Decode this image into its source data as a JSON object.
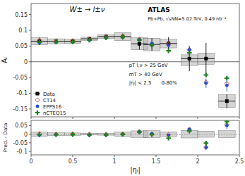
{
  "chart_data": [
    {
      "type": "scatter",
      "title": "W± → l±ν",
      "subtitle": "Pb+Pb, √sNN=5.02 TeV, 0.49 nb⁻¹",
      "annotations": [
        "ATLAS",
        "pT l,ν > 25 GeV",
        "mT > 40 GeV",
        "|ηₗ| < 2.5",
        "0-80%"
      ],
      "y_label": "Aₗ",
      "x": [
        0.1,
        0.3,
        0.5,
        0.7,
        0.9,
        1.1,
        1.3,
        1.45,
        1.65,
        1.9,
        2.1,
        2.35
      ],
      "xlim": [
        0.0,
        2.5
      ],
      "xticks": [
        0,
        0.5,
        1,
        1.5,
        2,
        2.5
      ],
      "ylim": [
        -0.175,
        0.185
      ],
      "yticks": [
        -0.15,
        -0.1,
        -0.05,
        0,
        0.05,
        0.1,
        0.15
      ],
      "tick_labels": "y",
      "grid": false,
      "legend": "lower left",
      "series": [
        {
          "name": "Data",
          "color": "black",
          "marker": "square",
          "values": [
            0.065,
            0.065,
            0.065,
            0.073,
            0.08,
            0.08,
            0.057,
            0.055,
            0.058,
            0.01,
            0.01,
            -0.125
          ],
          "yerr_lo": [
            0.012,
            0.009,
            0.007,
            0.007,
            0.008,
            0.01,
            0.018,
            0.02,
            0.02,
            0.04,
            0.05,
            0.022
          ],
          "yerr_hi": [
            0.012,
            0.009,
            0.007,
            0.007,
            0.008,
            0.01,
            0.018,
            0.02,
            0.02,
            0.04,
            0.05,
            0.022
          ],
          "xerr": [
            0.1,
            0.1,
            0.1,
            0.1,
            0.1,
            0.1,
            0.1,
            0.1,
            0.1,
            0.1,
            0.1,
            0.1
          ],
          "box_color": "#b0b0b0",
          "box_lo": [
            0.054,
            0.057,
            0.058,
            0.068,
            0.074,
            0.067,
            0.038,
            0.035,
            0.044,
            -0.012,
            -0.008,
            -0.145
          ],
          "box_hi": [
            0.076,
            0.073,
            0.072,
            0.078,
            0.086,
            0.093,
            0.076,
            0.075,
            0.072,
            0.022,
            0.028,
            -0.105
          ]
        },
        {
          "name": "CT14",
          "color": "#e05040",
          "marker": "diamond",
          "values": [
            0.068,
            0.065,
            0.067,
            0.072,
            0.079,
            0.081,
            0.072,
            0.056,
            0.055,
            0.038,
            -0.065,
            -0.07
          ]
        },
        {
          "name": "EPPS16",
          "color": "#2050d0",
          "marker": "circle",
          "values": [
            0.06,
            0.062,
            0.063,
            0.068,
            0.076,
            0.079,
            0.07,
            0.058,
            0.052,
            0.038,
            -0.068,
            -0.075
          ],
          "yerr": [
            0.005,
            0.004,
            0.004,
            0.004,
            0.004,
            0.004,
            0.005,
            0.005,
            0.006,
            0.008,
            0.015,
            0.02
          ]
        },
        {
          "name": "nCTEQ15",
          "color": "#208020",
          "marker": "plus",
          "values": [
            0.062,
            0.063,
            0.063,
            0.069,
            0.076,
            0.079,
            0.069,
            0.053,
            0.035,
            0.028,
            -0.042,
            -0.052
          ]
        }
      ]
    },
    {
      "type": "scatter",
      "x_label": "|ηₗ|",
      "y_label": "Pred. - Data",
      "x": [
        0.1,
        0.3,
        0.5,
        0.7,
        0.9,
        1.1,
        1.3,
        1.45,
        1.65,
        1.9,
        2.1,
        2.35
      ],
      "xlim": [
        0.0,
        2.5
      ],
      "xticks": [
        0,
        0.5,
        1,
        1.5,
        2,
        2.5
      ],
      "ylim": [
        -0.12,
        0.08
      ],
      "yticks": [
        -0.1,
        -0.05,
        0,
        0.05
      ],
      "grid": false,
      "series": [
        {
          "type": "box",
          "box_color": "#b0b0b0",
          "xerr": [
            0.1,
            0.1,
            0.1,
            0.1,
            0.1,
            0.1,
            0.1,
            0.1,
            0.1,
            0.1,
            0.1,
            0.1
          ],
          "box_lo": [
            -0.012,
            -0.008,
            -0.007,
            -0.005,
            -0.006,
            -0.013,
            -0.019,
            -0.02,
            -0.014,
            -0.022,
            -0.018,
            -0.02
          ],
          "box_hi": [
            0.012,
            0.008,
            0.007,
            0.005,
            0.006,
            0.013,
            0.019,
            0.02,
            0.014,
            0.022,
            0.018,
            0.02
          ]
        },
        {
          "color": "#e05040",
          "marker": "diamond",
          "values": [
            0.003,
            0.0,
            0.002,
            -0.001,
            -0.001,
            0.001,
            0.015,
            0.001,
            -0.003,
            0.028,
            -0.075,
            0.055
          ]
        },
        {
          "color": "#2050d0",
          "marker": "circle",
          "values": [
            -0.005,
            -0.003,
            -0.002,
            -0.005,
            -0.004,
            -0.001,
            0.013,
            0.003,
            -0.006,
            0.028,
            -0.078,
            0.05
          ],
          "yerr": [
            0.005,
            0.004,
            0.003,
            0.003,
            0.003,
            0.003,
            0.005,
            0.005,
            0.006,
            0.008,
            0.015,
            0.02
          ]
        },
        {
          "color": "#208020",
          "marker": "plus",
          "values": [
            -0.003,
            -0.002,
            -0.002,
            -0.004,
            -0.004,
            -0.001,
            0.012,
            -0.002,
            -0.023,
            0.018,
            -0.052,
            0.073
          ]
        }
      ]
    }
  ]
}
